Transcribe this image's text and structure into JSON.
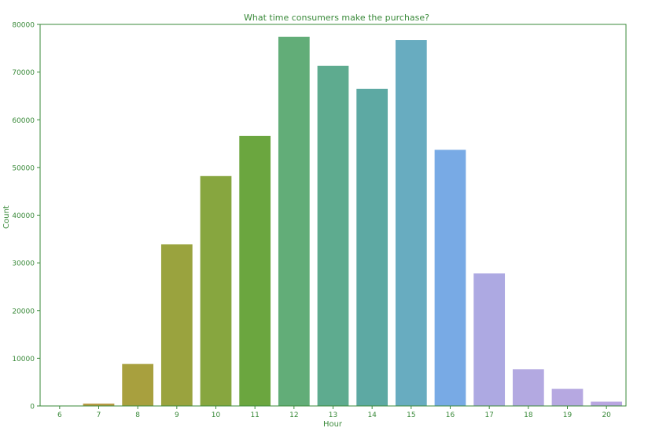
{
  "chart_data": {
    "type": "bar",
    "title": "What time consumers make the purchase?",
    "xlabel": "Hour",
    "ylabel": "Count",
    "categories": [
      "6",
      "7",
      "8",
      "9",
      "10",
      "11",
      "12",
      "13",
      "14",
      "15",
      "16",
      "17",
      "18",
      "19",
      "20"
    ],
    "values": [
      50,
      500,
      8800,
      33900,
      48200,
      56600,
      77400,
      71300,
      66500,
      76700,
      53700,
      27800,
      7700,
      3600,
      900
    ],
    "ylim": [
      0,
      80000
    ],
    "yticks": [
      "0",
      "10000",
      "20000",
      "30000",
      "40000",
      "50000",
      "60000",
      "70000",
      "80000"
    ],
    "grid": false,
    "legend": "none",
    "text_color": "#3a8a3a",
    "axis_color": "#3a8a3a",
    "bar_colors": [
      "#d67f4c",
      "#b89a45",
      "#a8a03e",
      "#9aa33e",
      "#87a63f",
      "#6ba63f",
      "#62ad78",
      "#5eab8f",
      "#5da9a3",
      "#68acc0",
      "#78aae5",
      "#ada9e2",
      "#b3a9e1",
      "#b6a8e1",
      "#b9a6e1"
    ]
  }
}
